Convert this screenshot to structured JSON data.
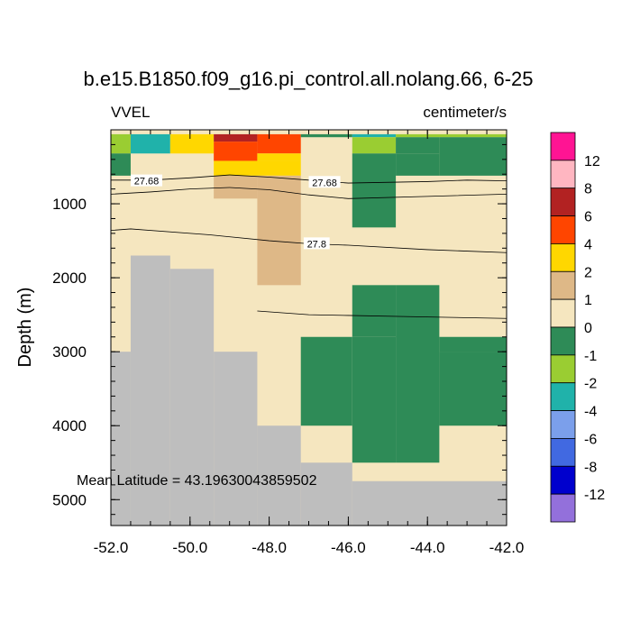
{
  "title": "b.e15.B1850.f09_g16.pi_control.all.nolang.66, 6-25",
  "left_string": "VVEL",
  "right_string": "centimeter/s",
  "ylabel": "Depth (m)",
  "annotation": "Mean Latitude = 43.19630043859502",
  "chart_data": {
    "type": "heatmap",
    "x_ticks": [
      "-52.0",
      "-50.0",
      "-48.0",
      "-46.0",
      "-44.0",
      "-42.0"
    ],
    "y_ticks": [
      "1000",
      "2000",
      "3000",
      "4000",
      "5000"
    ],
    "xlim": [
      -52.0,
      -42.0
    ],
    "ylim": [
      5350,
      0
    ],
    "y_reversed": true,
    "colorbar": {
      "labels": [
        "12",
        "8",
        "6",
        "4",
        "2",
        "1",
        "0",
        "-1",
        "-2",
        "-4",
        "-6",
        "-8",
        "-12"
      ],
      "colors": [
        "#FF1493",
        "#FFB6C1",
        "#B22222",
        "#FF4500",
        "#FFD700",
        "#DEB887",
        "#F5E6BF",
        "#2E8B57",
        "#9ACD32",
        "#20B2AA",
        "#7B9FEB",
        "#4169E1",
        "#0000CD",
        "#9370DB"
      ]
    },
    "levels": [
      -12,
      -8,
      -6,
      -4,
      -2,
      -1,
      0,
      1,
      2,
      4,
      6,
      8,
      12
    ],
    "land_color": "#BEBEBE",
    "background_class": 0,
    "cells": [
      {
        "x": [
          -52.0,
          -51.5
        ],
        "y": [
          60,
          320
        ],
        "class": -2
      },
      {
        "x": [
          -52.0,
          -51.5
        ],
        "y": [
          320,
          620
        ],
        "class": -1
      },
      {
        "x": [
          -51.5,
          -50.5
        ],
        "y": [
          60,
          320
        ],
        "class": -4
      },
      {
        "x": [
          -50.5,
          -49.4
        ],
        "y": [
          60,
          320
        ],
        "class": 2
      },
      {
        "x": [
          -49.4,
          -48.3
        ],
        "y": [
          60,
          160
        ],
        "class": 6
      },
      {
        "x": [
          -49.4,
          -48.3
        ],
        "y": [
          160,
          420
        ],
        "class": 4
      },
      {
        "x": [
          -48.3,
          -47.2
        ],
        "y": [
          60,
          320
        ],
        "class": 4
      },
      {
        "x": [
          -49.4,
          -47.2
        ],
        "y": [
          420,
          620
        ],
        "class": 2
      },
      {
        "x": [
          -48.3,
          -47.2
        ],
        "y": [
          320,
          420
        ],
        "class": 2
      },
      {
        "x": [
          -47.2,
          -45.9
        ],
        "y": [
          60,
          100
        ],
        "class": -1
      },
      {
        "x": [
          -45.9,
          -44.8
        ],
        "y": [
          60,
          100
        ],
        "class": -4
      },
      {
        "x": [
          -44.8,
          -42.0
        ],
        "y": [
          60,
          100
        ],
        "class": -2
      },
      {
        "x": [
          -45.9,
          -44.8
        ],
        "y": [
          100,
          320
        ],
        "class": -2
      },
      {
        "x": [
          -44.8,
          -43.7
        ],
        "y": [
          100,
          320
        ],
        "class": -1
      },
      {
        "x": [
          -43.7,
          -42.0
        ],
        "y": [
          100,
          620
        ],
        "class": -1
      },
      {
        "x": [
          -45.9,
          -44.8
        ],
        "y": [
          320,
          1320
        ],
        "class": -1
      },
      {
        "x": [
          -44.8,
          -43.7
        ],
        "y": [
          320,
          620
        ],
        "class": -1
      },
      {
        "x": [
          -49.4,
          -48.3
        ],
        "y": [
          620,
          930
        ],
        "class": 1
      },
      {
        "x": [
          -48.3,
          -47.2
        ],
        "y": [
          620,
          2100
        ],
        "class": 1
      },
      {
        "x": [
          -44.8,
          -43.7
        ],
        "y": [
          2100,
          4500
        ],
        "class": -1
      },
      {
        "x": [
          -45.9,
          -44.8
        ],
        "y": [
          2800,
          4500
        ],
        "class": -1
      },
      {
        "x": [
          -47.2,
          -45.9
        ],
        "y": [
          2800,
          4000
        ],
        "class": -1
      },
      {
        "x": [
          -43.7,
          -42.0
        ],
        "y": [
          2800,
          3000
        ],
        "class": -1
      },
      {
        "x": [
          -43.7,
          -42.0
        ],
        "y": [
          3000,
          4000
        ],
        "class": -1
      },
      {
        "x": [
          -42.7,
          -42.0
        ],
        "y": [
          4000,
          4000
        ],
        "class": -1
      },
      {
        "x": [
          -43.7,
          -42.7
        ],
        "y": [
          4000,
          4000
        ],
        "class": -1
      }
    ],
    "green_blobs": [
      {
        "x": [
          -45.9,
          -44.8
        ],
        "y": [
          2100,
          2800
        ]
      },
      {
        "x": [
          -43.7,
          -42.0
        ],
        "y": [
          3000,
          3980
        ]
      }
    ],
    "bathymetry": [
      {
        "x": [
          -52.0,
          -51.5
        ],
        "depth": 3000
      },
      {
        "x": [
          -51.5,
          -50.5
        ],
        "depth": 1700
      },
      {
        "x": [
          -50.5,
          -49.4
        ],
        "depth": 1880
      },
      {
        "x": [
          -49.4,
          -48.3
        ],
        "depth": 3000
      },
      {
        "x": [
          -48.3,
          -47.2
        ],
        "depth": 4000
      },
      {
        "x": [
          -47.2,
          -45.9
        ],
        "depth": 4500
      },
      {
        "x": [
          -45.9,
          -42.0
        ],
        "depth": 4750
      }
    ],
    "contours": [
      {
        "label": "27.68",
        "points": [
          [
            -52.0,
            680
          ],
          [
            -51.0,
            680
          ],
          [
            -50.0,
            650
          ],
          [
            -49.0,
            610
          ],
          [
            -48.0,
            640
          ],
          [
            -47.0,
            680
          ],
          [
            -46.0,
            720
          ],
          [
            -44.0,
            700
          ],
          [
            -43.0,
            680
          ],
          [
            -42.0,
            690
          ]
        ]
      },
      {
        "label": "27.68",
        "points": [
          [
            -52.0,
            870
          ],
          [
            -51.0,
            840
          ],
          [
            -50.0,
            800
          ],
          [
            -49.0,
            780
          ],
          [
            -48.0,
            810
          ],
          [
            -47.0,
            880
          ],
          [
            -46.0,
            930
          ],
          [
            -44.0,
            900
          ],
          [
            -42.0,
            870
          ]
        ]
      },
      {
        "label": "27.8",
        "points": [
          [
            -52.0,
            1360
          ],
          [
            -51.5,
            1340
          ],
          [
            -49.5,
            1420
          ],
          [
            -48.0,
            1500
          ],
          [
            -47.0,
            1540
          ],
          [
            -46.0,
            1560
          ],
          [
            -44.0,
            1620
          ],
          [
            -42.0,
            1660
          ]
        ]
      },
      {
        "label": "",
        "points": [
          [
            -48.3,
            2450
          ],
          [
            -47.0,
            2500
          ],
          [
            -46.0,
            2510
          ],
          [
            -44.0,
            2530
          ],
          [
            -42.0,
            2550
          ]
        ]
      }
    ],
    "contour_labels": [
      {
        "text": "27.68",
        "x": -51.1,
        "y": 690
      },
      {
        "text": "27.68",
        "x": -46.6,
        "y": 710
      },
      {
        "text": "27.8",
        "x": -46.8,
        "y": 1540
      }
    ]
  }
}
